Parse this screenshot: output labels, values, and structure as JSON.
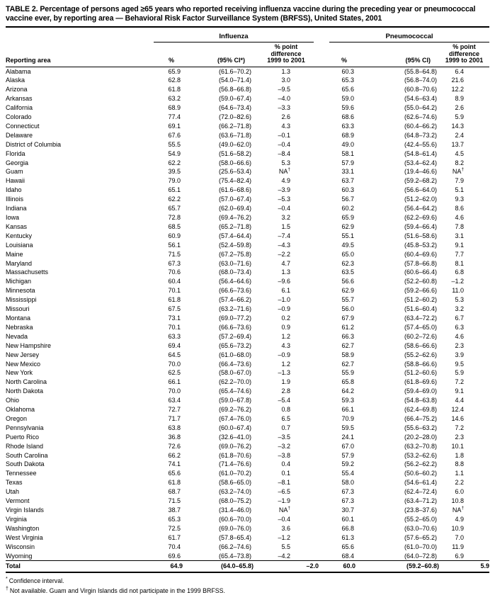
{
  "page": {
    "title": "TABLE 2. Percentage of persons aged ≥65 years who reported receiving influenza vaccine during the preceding year or pneumococcal vaccine ever, by reporting area — Behavioral Risk Factor Surveillance System (BRFSS), United States, 2001"
  },
  "table": {
    "group_headers": {
      "influenza": "Influenza",
      "pneumococcal": "Pneumococcal"
    },
    "column_headers": {
      "reporting_area": "Reporting area",
      "percent": "%",
      "ci_influenza": "(95% CI*)",
      "ci_pneumococcal": "(95% CI)",
      "diff": "% point\ndifference\n1999 to 2001"
    },
    "rows": [
      [
        "Alabama",
        "65.9",
        "(61.6–70.2)",
        "1.3",
        "60.3",
        "(55.8–64.8)",
        "6.4"
      ],
      [
        "Alaska",
        "62.8",
        "(54.0–71.4)",
        "3.0",
        "65.3",
        "(56.8–74.0)",
        "21.6"
      ],
      [
        "Arizona",
        "61.8",
        "(56.8–66.8)",
        "–9.5",
        "65.6",
        "(60.8–70.6)",
        "12.2"
      ],
      [
        "Arkansas",
        "63.2",
        "(59.0–67.4)",
        "–4.0",
        "59.0",
        "(54.6–63.4)",
        "8.9"
      ],
      [
        "California",
        "68.9",
        "(64.6–73.4)",
        "–3.3",
        "59.6",
        "(55.0–64.2)",
        "2.6"
      ],
      [
        "Colorado",
        "77.4",
        "(72.0–82.6)",
        "2.6",
        "68.6",
        "(62.6–74.6)",
        "5.9"
      ],
      [
        "Connecticut",
        "69.1",
        "(66.2–71.8)",
        "4.3",
        "63.3",
        "(60.4–66.2)",
        "14.3"
      ],
      [
        "Delaware",
        "67.6",
        "(63.6–71.8)",
        "–0.1",
        "68.9",
        "(64.8–73.2)",
        "2.4"
      ],
      [
        "District of Columbia",
        "55.5",
        "(49.0–62.0)",
        "–0.4",
        "49.0",
        "(42.4–55.6)",
        "13.7"
      ],
      [
        "Florida",
        "54.9",
        "(51.6–58.2)",
        "–8.4",
        "58.1",
        "(54.8–61.4)",
        "4.5"
      ],
      [
        "Georgia",
        "62.2",
        "(58.0–66.6)",
        "5.3",
        "57.9",
        "(53.4–62.4)",
        "8.2"
      ],
      [
        "Guam",
        "39.5",
        "(25.6–53.4)",
        "NA†",
        "33.1",
        "(19.4–46.6)",
        "NA†"
      ],
      [
        "Hawaii",
        "79.0",
        "(75.4–82.4)",
        "4.9",
        "63.7",
        "(59.2–68.2)",
        "7.9"
      ],
      [
        "Idaho",
        "65.1",
        "(61.6–68.6)",
        "–3.9",
        "60.3",
        "(56.6–64.0)",
        "5.1"
      ],
      [
        "Illinois",
        "62.2",
        "(57.0–67.4)",
        "–5.3",
        "56.7",
        "(51.2–62.0)",
        "9.3"
      ],
      [
        "Indiana",
        "65.7",
        "(62.0–69.4)",
        "–0.4",
        "60.2",
        "(56.4–64.2)",
        "8.6"
      ],
      [
        "Iowa",
        "72.8",
        "(69.4–76.2)",
        "3.2",
        "65.9",
        "(62.2–69.6)",
        "4.6"
      ],
      [
        "Kansas",
        "68.5",
        "(65.2–71.8)",
        "1.5",
        "62.9",
        "(59.4–66.4)",
        "7.8"
      ],
      [
        "Kentucky",
        "60.9",
        "(57.4–64.4)",
        "–7.4",
        "55.1",
        "(51.6–58.6)",
        "3.1"
      ],
      [
        "Louisiana",
        "56.1",
        "(52.4–59.8)",
        "–4.3",
        "49.5",
        "(45.8–53.2)",
        "9.1"
      ],
      [
        "Maine",
        "71.5",
        "(67.2–75.8)",
        "–2.2",
        "65.0",
        "(60.4–69.6)",
        "7.7"
      ],
      [
        "Maryland",
        "67.3",
        "(63.0–71.6)",
        "4.7",
        "62.3",
        "(57.8–66.8)",
        "8.1"
      ],
      [
        "Massachusetts",
        "70.6",
        "(68.0–73.4)",
        "1.3",
        "63.5",
        "(60.6–66.4)",
        "6.8"
      ],
      [
        "Michigan",
        "60.4",
        "(56.4–64.6)",
        "–9.6",
        "56.6",
        "(52.2–60.8)",
        "–1.2"
      ],
      [
        "Minnesota",
        "70.1",
        "(66.6–73.6)",
        "6.1",
        "62.9",
        "(59.2–66.6)",
        "11.0"
      ],
      [
        "Mississippi",
        "61.8",
        "(57.4–66.2)",
        "–1.0",
        "55.7",
        "(51.2–60.2)",
        "5.3"
      ],
      [
        "Missouri",
        "67.5",
        "(63.2–71.6)",
        "–0.9",
        "56.0",
        "(51.6–60.4)",
        "3.2"
      ],
      [
        "Montana",
        "73.1",
        "(69.0–77.2)",
        "0.2",
        "67.9",
        "(63.4–72.2)",
        "6.7"
      ],
      [
        "Nebraska",
        "70.1",
        "(66.6–73.6)",
        "0.9",
        "61.2",
        "(57.4–65.0)",
        "6.3"
      ],
      [
        "Nevada",
        "63.3",
        "(57.2–69.4)",
        "1.2",
        "66.3",
        "(60.2–72.6)",
        "4.6"
      ],
      [
        "New Hampshire",
        "69.4",
        "(65.6–73.2)",
        "4.3",
        "62.7",
        "(58.6–66.6)",
        "2.3"
      ],
      [
        "New Jersey",
        "64.5",
        "(61.0–68.0)",
        "–0.9",
        "58.9",
        "(55.2–62.6)",
        "3.9"
      ],
      [
        "New Mexico",
        "70.0",
        "(66.4–73.6)",
        "1.2",
        "62.7",
        "(58.8–66.6)",
        "9.5"
      ],
      [
        "New York",
        "62.5",
        "(58.0–67.0)",
        "–1.3",
        "55.9",
        "(51.2–60.6)",
        "5.9"
      ],
      [
        "North Carolina",
        "66.1",
        "(62.2–70.0)",
        "1.9",
        "65.8",
        "(61.8–69.6)",
        "7.2"
      ],
      [
        "North Dakota",
        "70.0",
        "(65.4–74.6)",
        "2.8",
        "64.2",
        "(59.4–69.0)",
        "9.1"
      ],
      [
        "Ohio",
        "63.4",
        "(59.0–67.8)",
        "–5.4",
        "59.3",
        "(54.8–63.8)",
        "4.4"
      ],
      [
        "Oklahoma",
        "72.7",
        "(69.2–76.2)",
        "0.8",
        "66.1",
        "(62.4–69.8)",
        "12.4"
      ],
      [
        "Oregon",
        "71.7",
        "(67.4–76.0)",
        "6.5",
        "70.9",
        "(66.4–75.2)",
        "14.6"
      ],
      [
        "Pennsylvania",
        "63.8",
        "(60.0–67.4)",
        "0.7",
        "59.5",
        "(55.6–63.2)",
        "7.2"
      ],
      [
        "Puerto Rico",
        "36.8",
        "(32.6–41.0)",
        "–3.5",
        "24.1",
        "(20.2–28.0)",
        "2.3"
      ],
      [
        "Rhode Island",
        "72.6",
        "(69.0–76.2)",
        "–3.2",
        "67.0",
        "(63.2–70.8)",
        "10.1"
      ],
      [
        "South Carolina",
        "66.2",
        "(61.8–70.6)",
        "–3.8",
        "57.9",
        "(53.2–62.6)",
        "1.8"
      ],
      [
        "South Dakota",
        "74.1",
        "(71.4–76.6)",
        "0.4",
        "59.2",
        "(56.2–62.2)",
        "8.8"
      ],
      [
        "Tennessee",
        "65.6",
        "(61.0–70.2)",
        "0.1",
        "55.4",
        "(50.6–60.2)",
        "1.1"
      ],
      [
        "Texas",
        "61.8",
        "(58.6–65.0)",
        "–8.1",
        "58.0",
        "(54.6–61.4)",
        "2.2"
      ],
      [
        "Utah",
        "68.7",
        "(63.2–74.0)",
        "–6.5",
        "67.3",
        "(62.4–72.4)",
        "6.0"
      ],
      [
        "Vermont",
        "71.5",
        "(68.0–75.2)",
        "–1.9",
        "67.3",
        "(63.4–71.2)",
        "10.8"
      ],
      [
        "Virgin Islands",
        "38.7",
        "(31.4–46.0)",
        "NA†",
        "30.7",
        "(23.8–37.6)",
        "NA†"
      ],
      [
        "Virginia",
        "65.3",
        "(60.6–70.0)",
        "–0.4",
        "60.1",
        "(55.2–65.0)",
        "4.9"
      ],
      [
        "Washington",
        "72.5",
        "(69.0–76.0)",
        "3.6",
        "66.8",
        "(63.0–70.6)",
        "10.9"
      ],
      [
        "West Virginia",
        "61.7",
        "(57.8–65.4)",
        "–1.2",
        "61.3",
        "(57.6–65.2)",
        "7.0"
      ],
      [
        "Wisconsin",
        "70.4",
        "(66.2–74.6)",
        "5.5",
        "65.6",
        "(61.0–70.0)",
        "11.9"
      ],
      [
        "Wyoming",
        "69.6",
        "(65.4–73.8)",
        "–4.2",
        "68.4",
        "(64.0–72.8)",
        "6.9"
      ]
    ],
    "total": [
      "Total",
      "64.9",
      "(64.0–65.8)",
      "–2.0",
      "60.0",
      "(59.2–60.8)",
      "5.9"
    ]
  },
  "footnotes": [
    {
      "marker": "*",
      "text": "Confidence interval."
    },
    {
      "marker": "†",
      "text": "Not available. Guam and Virgin Islands did not participate in the 1999 BRFSS."
    }
  ]
}
